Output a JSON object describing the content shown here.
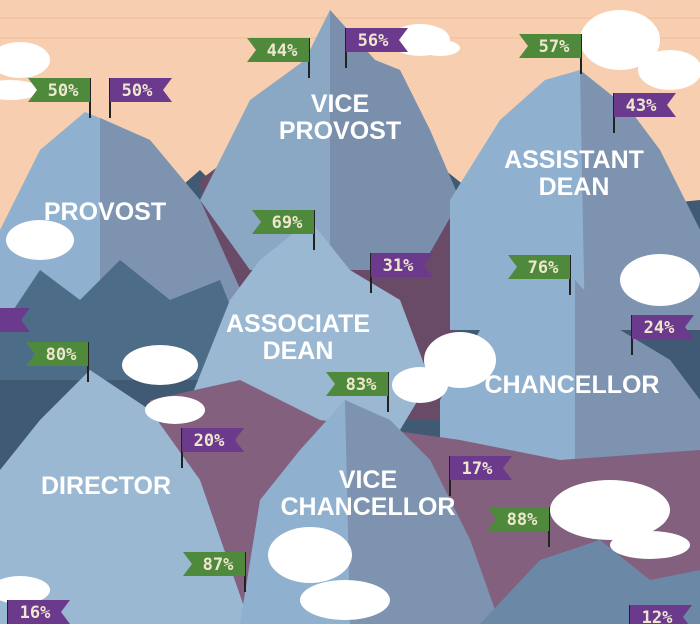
{
  "mountains": [
    {
      "lines": [
        "PROVOST"
      ]
    },
    {
      "lines": [
        "VICE",
        "PROVOST"
      ]
    },
    {
      "lines": [
        "ASSISTANT",
        "DEAN"
      ]
    },
    {
      "lines": [
        "ASSOCIATE",
        "DEAN"
      ]
    },
    {
      "lines": [
        "CHANCELLOR"
      ]
    },
    {
      "lines": [
        "DIRECTOR"
      ]
    },
    {
      "lines": [
        "VICE",
        "CHANCELLOR"
      ]
    }
  ],
  "flags": [
    {
      "label": "50%"
    },
    {
      "label": "50%"
    },
    {
      "label": "44%"
    },
    {
      "label": "56%"
    },
    {
      "label": "57%"
    },
    {
      "label": "43%"
    },
    {
      "label": "69%"
    },
    {
      "label": "31%"
    },
    {
      "label": "76%"
    },
    {
      "label": "24%"
    },
    {
      "label": "%"
    },
    {
      "label": "80%"
    },
    {
      "label": "83%"
    },
    {
      "label": "20%"
    },
    {
      "label": "17%"
    },
    {
      "label": "88%"
    },
    {
      "label": "87%"
    },
    {
      "label": "16%"
    },
    {
      "label": "12%"
    }
  ]
}
